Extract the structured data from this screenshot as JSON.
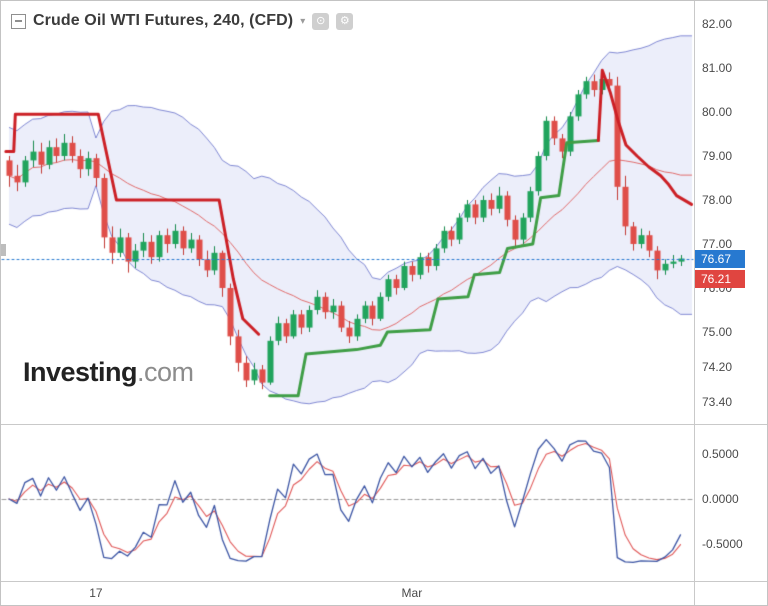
{
  "header": {
    "title": "Crude Oil WTI Futures, 240, (CFD)",
    "dropdown_glyph": "▾",
    "icon1_glyph": "⊙",
    "icon2_glyph": "⚙"
  },
  "watermark": {
    "bold": "Investing",
    "light": ".com"
  },
  "price_axis": {
    "labels": [
      {
        "text": "82.00",
        "price": 82.0
      },
      {
        "text": "81.00",
        "price": 81.0
      },
      {
        "text": "80.00",
        "price": 80.0
      },
      {
        "text": "79.00",
        "price": 79.0
      },
      {
        "text": "78.00",
        "price": 78.0
      },
      {
        "text": "77.00",
        "price": 77.0
      },
      {
        "text": "76.00",
        "price": 76.0
      },
      {
        "text": "75.00",
        "price": 75.0
      },
      {
        "text": "74.20",
        "price": 74.2
      },
      {
        "text": "73.40",
        "price": 73.4
      }
    ],
    "last_price_badge": {
      "text": "76.67",
      "price": 76.67,
      "color": "#2779d0"
    },
    "indicator_badge": {
      "text": "76.21",
      "price": 76.21,
      "color": "#e04540"
    }
  },
  "oscillator_axis": {
    "labels": [
      {
        "text": "0.5000",
        "value": 0.5
      },
      {
        "text": "0.0000",
        "value": 0.0
      },
      {
        "text": "-0.5000",
        "value": -0.5
      }
    ]
  },
  "time_axis": {
    "labels": [
      {
        "text": "17",
        "index": 11
      },
      {
        "text": "Mar",
        "index": 51
      }
    ]
  },
  "chart_data": {
    "type": "candlestick",
    "symbol": "Crude Oil WTI Futures",
    "interval": "240",
    "instrument_type": "CFD",
    "price_axis_range": [
      73.0,
      82.4
    ],
    "oscillator_range": [
      -0.9,
      0.85
    ],
    "last_price": 76.67,
    "indicator_value": 76.21,
    "candles": [
      [
        78.9,
        79.0,
        78.3,
        78.55
      ],
      [
        78.55,
        78.8,
        78.2,
        78.4
      ],
      [
        78.4,
        79.0,
        78.3,
        78.9
      ],
      [
        78.9,
        79.35,
        78.75,
        79.1
      ],
      [
        79.1,
        79.3,
        78.6,
        78.8
      ],
      [
        78.8,
        79.35,
        78.7,
        79.2
      ],
      [
        79.2,
        79.4,
        78.85,
        79.0
      ],
      [
        79.0,
        79.5,
        78.9,
        79.3
      ],
      [
        79.3,
        79.45,
        78.85,
        79.0
      ],
      [
        79.0,
        79.15,
        78.5,
        78.7
      ],
      [
        78.7,
        79.1,
        78.55,
        78.95
      ],
      [
        78.95,
        79.05,
        78.3,
        78.5
      ],
      [
        78.5,
        78.6,
        76.9,
        77.15
      ],
      [
        77.15,
        77.4,
        76.55,
        76.8
      ],
      [
        76.8,
        77.35,
        76.7,
        77.15
      ],
      [
        77.15,
        77.25,
        76.35,
        76.6
      ],
      [
        76.6,
        77.0,
        76.45,
        76.85
      ],
      [
        76.85,
        77.25,
        76.7,
        77.05
      ],
      [
        77.05,
        77.2,
        76.55,
        76.7
      ],
      [
        76.7,
        77.3,
        76.6,
        77.2
      ],
      [
        77.2,
        77.35,
        76.8,
        77.0
      ],
      [
        77.0,
        77.45,
        76.9,
        77.3
      ],
      [
        77.3,
        77.4,
        76.75,
        76.9
      ],
      [
        76.9,
        77.25,
        76.8,
        77.1
      ],
      [
        77.1,
        77.2,
        76.5,
        76.65
      ],
      [
        76.65,
        76.85,
        76.25,
        76.4
      ],
      [
        76.4,
        76.95,
        76.3,
        76.8
      ],
      [
        76.8,
        76.85,
        75.8,
        76.0
      ],
      [
        76.0,
        76.1,
        74.7,
        74.9
      ],
      [
        74.9,
        75.05,
        74.1,
        74.3
      ],
      [
        74.3,
        74.45,
        73.75,
        73.9
      ],
      [
        73.9,
        74.3,
        73.8,
        74.15
      ],
      [
        74.15,
        74.25,
        73.7,
        73.85
      ],
      [
        73.85,
        74.9,
        73.8,
        74.8
      ],
      [
        74.8,
        75.35,
        74.7,
        75.2
      ],
      [
        75.2,
        75.3,
        74.75,
        74.9
      ],
      [
        74.9,
        75.5,
        74.85,
        75.4
      ],
      [
        75.4,
        75.5,
        74.95,
        75.1
      ],
      [
        75.1,
        75.6,
        75.0,
        75.5
      ],
      [
        75.5,
        75.95,
        75.4,
        75.8
      ],
      [
        75.8,
        75.9,
        75.3,
        75.45
      ],
      [
        75.45,
        75.75,
        75.3,
        75.6
      ],
      [
        75.6,
        75.7,
        75.0,
        75.1
      ],
      [
        75.1,
        75.25,
        74.75,
        74.9
      ],
      [
        74.9,
        75.4,
        74.8,
        75.3
      ],
      [
        75.3,
        75.7,
        75.2,
        75.6
      ],
      [
        75.6,
        75.7,
        75.15,
        75.3
      ],
      [
        75.3,
        75.9,
        75.25,
        75.8
      ],
      [
        75.8,
        76.3,
        75.7,
        76.2
      ],
      [
        76.2,
        76.3,
        75.85,
        76.0
      ],
      [
        76.0,
        76.6,
        75.95,
        76.5
      ],
      [
        76.5,
        76.6,
        76.15,
        76.3
      ],
      [
        76.3,
        76.8,
        76.2,
        76.7
      ],
      [
        76.7,
        76.8,
        76.35,
        76.5
      ],
      [
        76.5,
        77.0,
        76.4,
        76.9
      ],
      [
        76.9,
        77.4,
        76.8,
        77.3
      ],
      [
        77.3,
        77.4,
        76.95,
        77.1
      ],
      [
        77.1,
        77.7,
        77.0,
        77.6
      ],
      [
        77.6,
        78.0,
        77.5,
        77.9
      ],
      [
        77.9,
        78.0,
        77.45,
        77.6
      ],
      [
        77.6,
        78.1,
        77.5,
        78.0
      ],
      [
        78.0,
        78.15,
        77.65,
        77.8
      ],
      [
        77.8,
        78.3,
        77.7,
        78.1
      ],
      [
        78.1,
        78.2,
        77.4,
        77.55
      ],
      [
        77.55,
        77.65,
        76.95,
        77.1
      ],
      [
        77.1,
        77.7,
        77.0,
        77.6
      ],
      [
        77.6,
        78.3,
        77.5,
        78.2
      ],
      [
        78.2,
        79.1,
        78.1,
        79.0
      ],
      [
        79.0,
        79.9,
        78.9,
        79.8
      ],
      [
        79.8,
        79.9,
        79.25,
        79.4
      ],
      [
        79.4,
        79.5,
        78.95,
        79.1
      ],
      [
        79.1,
        80.0,
        79.0,
        79.9
      ],
      [
        79.9,
        80.5,
        79.8,
        80.4
      ],
      [
        80.4,
        80.8,
        80.3,
        80.7
      ],
      [
        80.7,
        80.85,
        80.35,
        80.5
      ],
      [
        80.5,
        80.85,
        80.4,
        80.75
      ],
      [
        80.75,
        80.9,
        80.45,
        80.6
      ],
      [
        80.6,
        80.8,
        78.0,
        78.3
      ],
      [
        78.3,
        78.55,
        77.2,
        77.4
      ],
      [
        77.4,
        77.5,
        76.85,
        77.0
      ],
      [
        77.0,
        77.35,
        76.9,
        77.2
      ],
      [
        77.2,
        77.3,
        76.7,
        76.85
      ],
      [
        76.85,
        76.95,
        76.2,
        76.4
      ],
      [
        76.4,
        76.65,
        76.3,
        76.55
      ],
      [
        76.55,
        76.75,
        76.45,
        76.6
      ],
      [
        76.6,
        76.75,
        76.5,
        76.67
      ]
    ],
    "bollinger": {
      "period": 20,
      "stddev": 2
    },
    "moving_average": {
      "period": 20
    },
    "supertrend_segments": [
      {
        "color": "#cc2026",
        "points": [
          [
            -0.4,
            79.1
          ],
          [
            0.6,
            79.1
          ],
          [
            0.8,
            79.95
          ],
          [
            11.3,
            79.95
          ],
          [
            13.6,
            78.0
          ],
          [
            26.6,
            78.0
          ],
          [
            28.4,
            76.2
          ],
          [
            29.6,
            75.3
          ],
          [
            31.6,
            74.95
          ]
        ]
      },
      {
        "color": "#3f9e46",
        "points": [
          [
            33,
            73.55
          ],
          [
            36.6,
            73.55
          ],
          [
            37.6,
            74.5
          ],
          [
            44,
            74.6
          ],
          [
            47,
            74.7
          ],
          [
            47.9,
            75.0
          ],
          [
            53.3,
            75.05
          ],
          [
            54.3,
            75.75
          ],
          [
            58.1,
            75.8
          ],
          [
            58.9,
            76.3
          ],
          [
            62.1,
            76.35
          ],
          [
            63.1,
            76.9
          ],
          [
            66.3,
            77.0
          ],
          [
            67.3,
            78.05
          ],
          [
            69.6,
            78.1
          ],
          [
            70.6,
            79.3
          ],
          [
            74.6,
            79.35
          ]
        ]
      },
      {
        "color": "#cc2026",
        "points": [
          [
            74.6,
            79.35
          ],
          [
            75.1,
            80.95
          ],
          [
            76.1,
            80.45
          ],
          [
            77.1,
            79.8
          ],
          [
            78.1,
            79.25
          ],
          [
            79.5,
            79.0
          ],
          [
            81,
            78.75
          ],
          [
            82.5,
            78.55
          ],
          [
            83.5,
            78.35
          ],
          [
            84.5,
            78.1
          ],
          [
            86.4,
            77.9
          ]
        ]
      }
    ],
    "oscillator": {
      "type": "two_line_momentum",
      "levels": [
        0.5,
        0.0,
        -0.5
      ],
      "zero_line_dashed": true,
      "fast_basis_period": 10,
      "signal_smoothing": 0.5
    },
    "colors": {
      "band_fill": "rgba(109,120,214,0.13)",
      "band_line": "rgba(98,108,200,0.8)",
      "ma_line": "#e06a6a",
      "up": "#21a45d",
      "up_border": "#178a4c",
      "down": "#df4e49",
      "down_border": "#c23a35",
      "osc_blue": "#3c55a4",
      "osc_red": "#e05858",
      "zero_line": "#9a9a9a"
    }
  }
}
